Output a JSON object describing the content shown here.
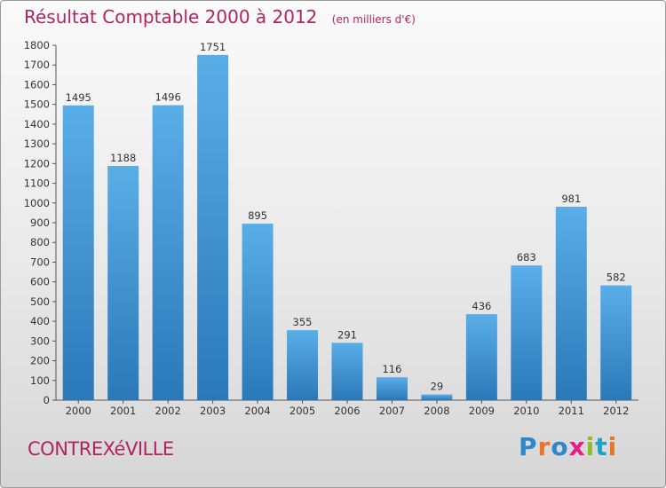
{
  "header": {
    "title": "Résultat Comptable 2000 à 2012",
    "subtitle": "(en milliers d'€)"
  },
  "footer": {
    "commune": "CONTREXéVILLE",
    "brand": "Proxiti",
    "brand_colors": [
      "#2f86c9",
      "#e9752a",
      "#2f86c9",
      "#e21e86",
      "#8dbd2a",
      "#1aa3c9",
      "#e9752a"
    ]
  },
  "colors": {
    "bar_top": "#5aaee8",
    "bar_bottom": "#2a78b8",
    "accent": "#b0255d"
  },
  "chart_data": {
    "type": "bar",
    "categories": [
      "2000",
      "2001",
      "2002",
      "2003",
      "2004",
      "2005",
      "2006",
      "2007",
      "2008",
      "2009",
      "2010",
      "2011",
      "2012"
    ],
    "values": [
      1495,
      1188,
      1496,
      1751,
      895,
      355,
      291,
      116,
      29,
      436,
      683,
      981,
      582
    ],
    "ylim": [
      0,
      1800
    ],
    "yticks": [
      0,
      100,
      200,
      300,
      400,
      500,
      600,
      700,
      800,
      900,
      1000,
      1100,
      1200,
      1300,
      1400,
      1500,
      1600,
      1700,
      1800
    ],
    "grid": false,
    "data_labels": true
  }
}
